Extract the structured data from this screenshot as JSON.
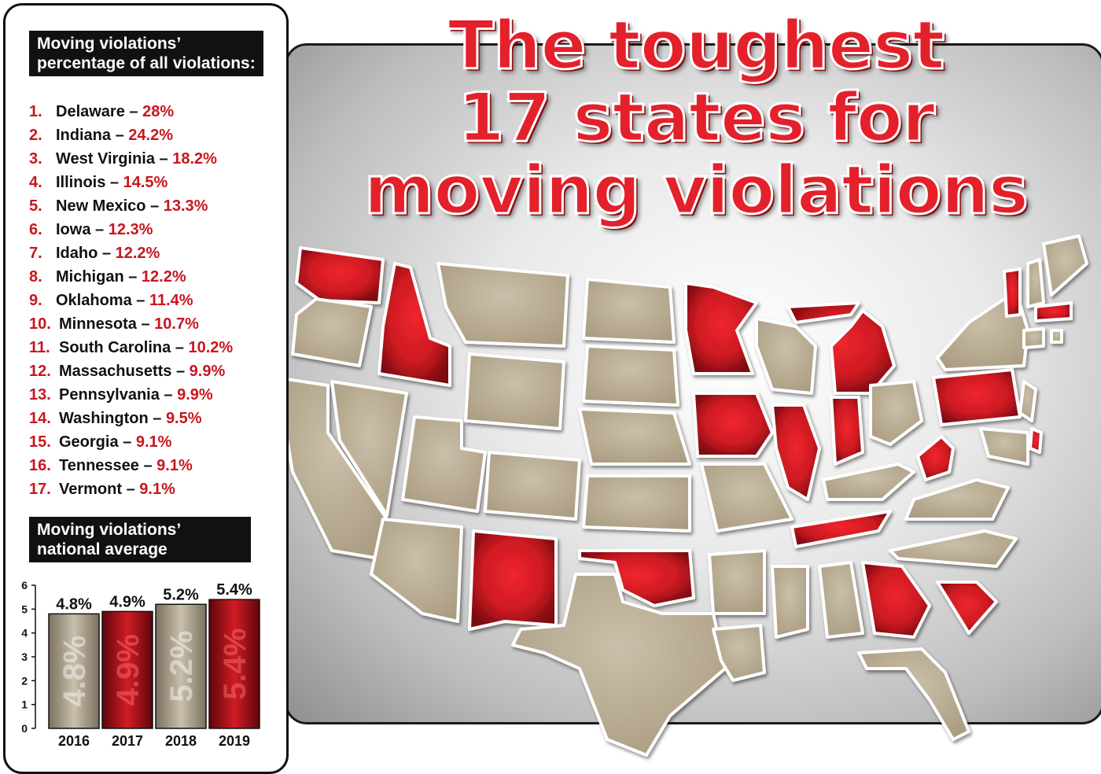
{
  "title": {
    "lines": [
      "The toughest",
      "17 states for",
      "moving violations"
    ]
  },
  "ranking": {
    "heading_line1": "Moving violations’",
    "heading_line2": "percentage of all violations:",
    "items": [
      {
        "rank": "1.",
        "state": "Delaware",
        "pct": "28%"
      },
      {
        "rank": "2.",
        "state": "Indiana",
        "pct": "24.2%"
      },
      {
        "rank": "3.",
        "state": "West Virginia",
        "pct": "18.2%"
      },
      {
        "rank": "4.",
        "state": "Illinois",
        "pct": "14.5%"
      },
      {
        "rank": "5.",
        "state": "New Mexico",
        "pct": "13.3%"
      },
      {
        "rank": "6.",
        "state": "Iowa",
        "pct": "12.3%"
      },
      {
        "rank": "7.",
        "state": "Idaho",
        "pct": "12.2%"
      },
      {
        "rank": "8.",
        "state": "Michigan",
        "pct": "12.2%"
      },
      {
        "rank": "9.",
        "state": "Oklahoma",
        "pct": "11.4%"
      },
      {
        "rank": "10.",
        "state": "Minnesota",
        "pct": "10.7%"
      },
      {
        "rank": "11.",
        "state": "South Carolina",
        "pct": "10.2%"
      },
      {
        "rank": "12.",
        "state": "Massachusetts",
        "pct": "9.9%"
      },
      {
        "rank": "13.",
        "state": "Pennsylvania",
        "pct": "9.9%"
      },
      {
        "rank": "14.",
        "state": "Washington",
        "pct": "9.5%"
      },
      {
        "rank": "15.",
        "state": "Georgia",
        "pct": "9.1%"
      },
      {
        "rank": "16.",
        "state": "Tennessee",
        "pct": "9.1%"
      },
      {
        "rank": "17.",
        "state": "Vermont",
        "pct": "9.1%"
      }
    ]
  },
  "national": {
    "heading_line1": "Moving violations’",
    "heading_line2": "national average"
  },
  "chart_data": {
    "type": "bar",
    "categories": [
      "2016",
      "2017",
      "2018",
      "2019"
    ],
    "values": [
      4.8,
      4.9,
      5.2,
      5.4
    ],
    "data_labels": [
      "4.8%",
      "4.9%",
      "5.2%",
      "5.4%"
    ],
    "yticks": [
      0,
      1,
      2,
      3,
      4,
      5,
      6
    ],
    "ylim": [
      0,
      6
    ],
    "title": "",
    "xlabel": "",
    "ylabel": "",
    "bar_colors": [
      "tan",
      "red",
      "tan",
      "red"
    ]
  },
  "colors": {
    "accent_red": "#e4202a",
    "dark_red": "#8a0d12",
    "tan": "#b8ab93",
    "panel_text": "#111111"
  },
  "map": {
    "highlighted_states": [
      "Washington",
      "Idaho",
      "Minnesota",
      "Michigan",
      "Iowa",
      "Illinois",
      "Indiana",
      "Pennsylvania",
      "West Virginia",
      "Delaware",
      "Vermont",
      "Massachusetts",
      "New Mexico",
      "Oklahoma",
      "Tennessee",
      "Georgia",
      "South Carolina"
    ]
  }
}
